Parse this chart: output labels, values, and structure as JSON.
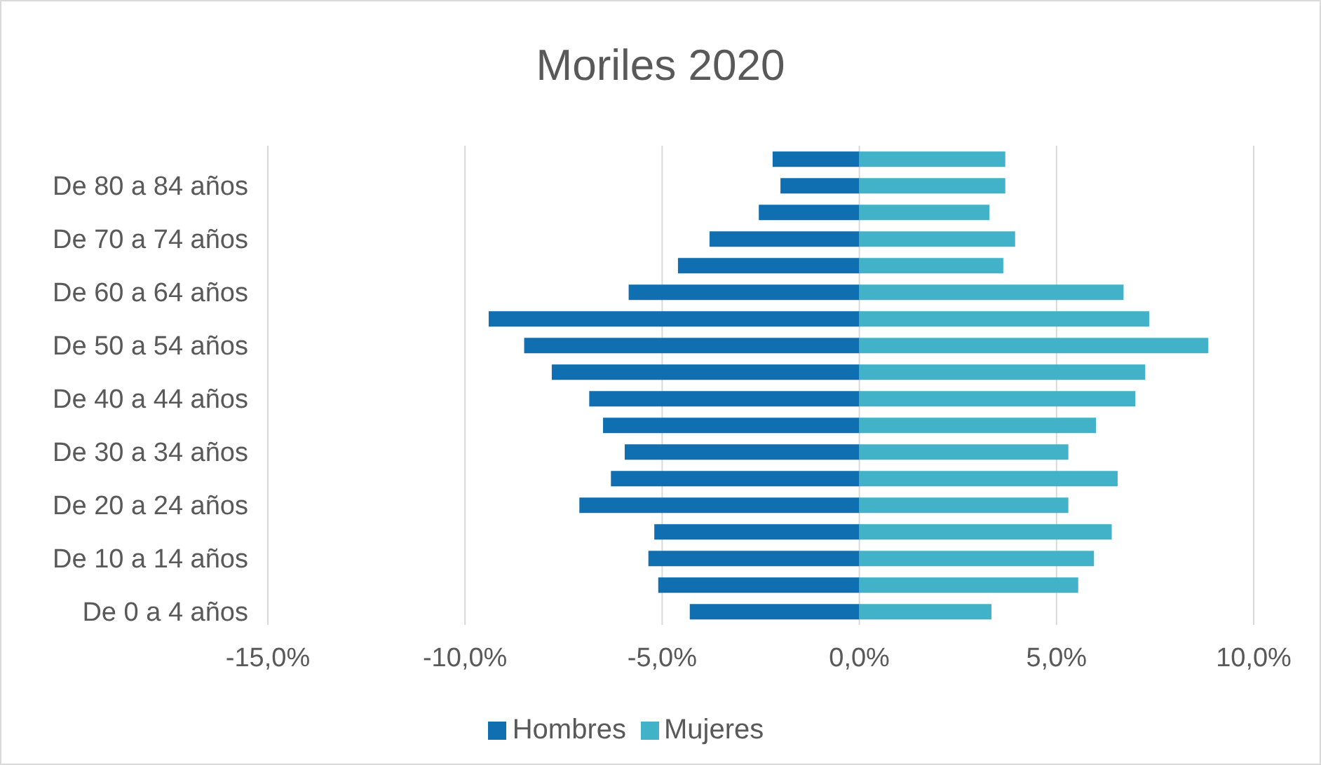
{
  "chart_data": {
    "type": "bar",
    "title": "Moriles 2020",
    "orientation": "horizontal",
    "stacked": true,
    "categories": [
      null,
      "De 80 a 84 años",
      null,
      "De 70 a 74 años",
      null,
      "De 60 a 64 años",
      null,
      "De 50 a 54 años",
      null,
      "De 40 a 44 años",
      null,
      "De 30 a 34 años",
      null,
      "De 20 a 24 años",
      null,
      "De 10 a 14 años",
      null,
      "De 0 a 4 años"
    ],
    "series": [
      {
        "name": "Hombres",
        "color": "#0f6fb0",
        "values": [
          -2.2,
          -2.0,
          -2.55,
          -3.8,
          -4.6,
          -5.85,
          -9.4,
          -8.5,
          -7.8,
          -6.85,
          -6.5,
          -5.95,
          -6.3,
          -7.1,
          -5.2,
          -5.35,
          -5.1,
          -4.3
        ]
      },
      {
        "name": "Mujeres",
        "color": "#41b2c8",
        "values": [
          3.7,
          3.7,
          3.3,
          3.95,
          3.65,
          6.7,
          7.35,
          8.85,
          7.25,
          7.0,
          6.0,
          5.3,
          6.55,
          5.3,
          6.4,
          5.95,
          5.55,
          3.35
        ]
      }
    ],
    "xlim": [
      -15,
      10
    ],
    "xticks": [
      {
        "value": -15,
        "label": "-15,0%"
      },
      {
        "value": -10,
        "label": "-10,0%"
      },
      {
        "value": -5,
        "label": "-5,0%"
      },
      {
        "value": 0,
        "label": "0,0%"
      },
      {
        "value": 5,
        "label": "5,0%"
      },
      {
        "value": 10,
        "label": "10,0%"
      }
    ],
    "grid": "x",
    "legend": "bottom"
  }
}
